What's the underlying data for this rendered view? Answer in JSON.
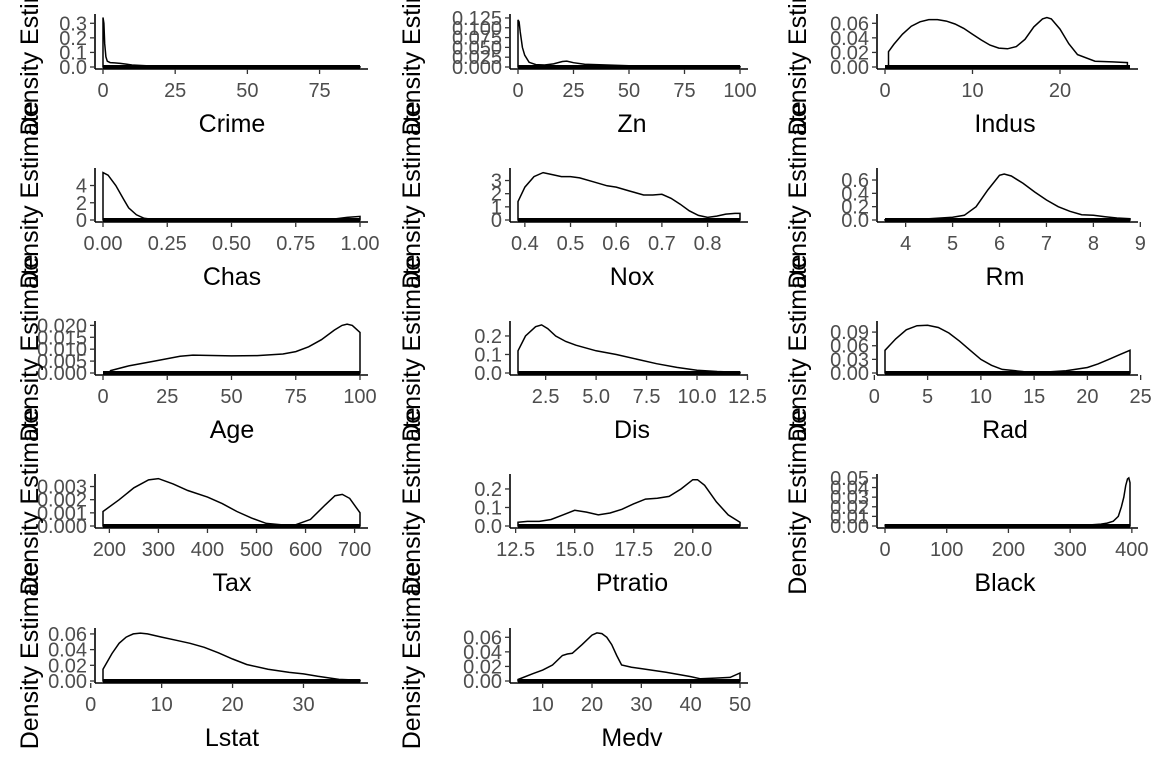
{
  "chart_data": [
    {
      "type": "line",
      "xlabel": "Crime",
      "ylabel": "Density Estimate",
      "xlim": [
        0,
        89
      ],
      "ylim": [
        0,
        0.35
      ],
      "xticks": [
        {
          "v": 0,
          "t": "0"
        },
        {
          "v": 25,
          "t": "25"
        },
        {
          "v": 50,
          "t": "50"
        },
        {
          "v": 75,
          "t": "75"
        }
      ],
      "yticks": [
        {
          "v": 0,
          "t": "0.0"
        },
        {
          "v": 0.1,
          "t": "0.1"
        },
        {
          "v": 0.2,
          "t": "0.2"
        },
        {
          "v": 0.3,
          "t": "0.3"
        }
      ],
      "x": [
        0,
        0.3,
        0.6,
        1,
        1.5,
        2.5,
        4,
        6,
        8,
        10,
        15,
        20,
        30,
        40,
        50,
        60,
        70,
        80,
        89
      ],
      "y": [
        0.34,
        0.3,
        0.16,
        0.07,
        0.04,
        0.03,
        0.028,
        0.025,
        0.02,
        0.014,
        0.008,
        0.006,
        0.004,
        0.003,
        0.002,
        0.002,
        0.002,
        0.001,
        0.001
      ]
    },
    {
      "type": "line",
      "xlabel": "Zn",
      "ylabel": "Density Estimate",
      "xlim": [
        0,
        100
      ],
      "ylim": [
        0,
        0.13
      ],
      "xticks": [
        {
          "v": 0,
          "t": "0"
        },
        {
          "v": 25,
          "t": "25"
        },
        {
          "v": 50,
          "t": "50"
        },
        {
          "v": 75,
          "t": "75"
        },
        {
          "v": 100,
          "t": "100"
        }
      ],
      "yticks": [
        {
          "v": 0,
          "t": "0.000"
        },
        {
          "v": 0.025,
          "t": "0.025"
        },
        {
          "v": 0.05,
          "t": "0.050"
        },
        {
          "v": 0.075,
          "t": "0.075"
        },
        {
          "v": 0.1,
          "t": "0.100"
        },
        {
          "v": 0.125,
          "t": "0.125"
        }
      ],
      "x": [
        0,
        0.5,
        1,
        2,
        3,
        5,
        8,
        12,
        16,
        20,
        22,
        25,
        30,
        35,
        40,
        45,
        50,
        55,
        60,
        70,
        80,
        85,
        90,
        95,
        100
      ],
      "y": [
        0.12,
        0.115,
        0.09,
        0.05,
        0.03,
        0.012,
        0.006,
        0.005,
        0.008,
        0.014,
        0.015,
        0.011,
        0.007,
        0.006,
        0.005,
        0.004,
        0.003,
        0.003,
        0.002,
        0.002,
        0.003,
        0.003,
        0.002,
        0.002,
        0.001
      ]
    },
    {
      "type": "line",
      "xlabel": "Indus",
      "ylabel": "Density Estimate",
      "xlim": [
        0,
        28
      ],
      "ylim": [
        0,
        0.07
      ],
      "xticks": [
        {
          "v": 0,
          "t": "0"
        },
        {
          "v": 10,
          "t": "10"
        },
        {
          "v": 20,
          "t": "20"
        }
      ],
      "yticks": [
        {
          "v": 0,
          "t": "0.00"
        },
        {
          "v": 0.02,
          "t": "0.02"
        },
        {
          "v": 0.04,
          "t": "0.04"
        },
        {
          "v": 0.06,
          "t": "0.06"
        }
      ],
      "x": [
        0.4,
        1,
        2,
        3,
        4,
        5,
        6,
        7,
        8,
        9,
        10,
        11,
        12,
        13,
        14,
        15,
        16,
        17,
        18,
        18.5,
        19,
        20,
        21,
        22,
        24,
        26,
        27.7
      ],
      "y": [
        0.021,
        0.031,
        0.045,
        0.056,
        0.062,
        0.065,
        0.065,
        0.063,
        0.059,
        0.053,
        0.045,
        0.037,
        0.03,
        0.026,
        0.025,
        0.028,
        0.038,
        0.055,
        0.066,
        0.068,
        0.066,
        0.052,
        0.032,
        0.017,
        0.008,
        0.007,
        0.006
      ]
    },
    {
      "type": "line",
      "xlabel": "Chas",
      "ylabel": "Density Estimate",
      "xlim": [
        0,
        1
      ],
      "ylim": [
        0,
        5.8
      ],
      "xticks": [
        {
          "v": 0,
          "t": "0.00"
        },
        {
          "v": 0.25,
          "t": "0.25"
        },
        {
          "v": 0.5,
          "t": "0.50"
        },
        {
          "v": 0.75,
          "t": "0.75"
        },
        {
          "v": 1,
          "t": "1.00"
        }
      ],
      "yticks": [
        {
          "v": 0,
          "t": "0"
        },
        {
          "v": 2,
          "t": "2"
        },
        {
          "v": 4,
          "t": "4"
        }
      ],
      "x": [
        0,
        0.02,
        0.05,
        0.08,
        0.1,
        0.13,
        0.16,
        0.2,
        0.25,
        0.3,
        0.5,
        0.7,
        0.85,
        0.9,
        0.95,
        1
      ],
      "y": [
        5.5,
        5.2,
        4.0,
        2.4,
        1.4,
        0.6,
        0.2,
        0.05,
        0.01,
        0,
        0,
        0,
        0.02,
        0.12,
        0.3,
        0.42
      ]
    },
    {
      "type": "line",
      "xlabel": "Nox",
      "ylabel": "Density Estimate",
      "xlim": [
        0.385,
        0.871
      ],
      "ylim": [
        0,
        3.8
      ],
      "xticks": [
        {
          "v": 0.4,
          "t": "0.4"
        },
        {
          "v": 0.5,
          "t": "0.5"
        },
        {
          "v": 0.6,
          "t": "0.6"
        },
        {
          "v": 0.7,
          "t": "0.7"
        },
        {
          "v": 0.8,
          "t": "0.8"
        }
      ],
      "yticks": [
        {
          "v": 0,
          "t": "0"
        },
        {
          "v": 1,
          "t": "1"
        },
        {
          "v": 2,
          "t": "2"
        },
        {
          "v": 3,
          "t": "3"
        }
      ],
      "x": [
        0.385,
        0.4,
        0.42,
        0.44,
        0.46,
        0.48,
        0.5,
        0.52,
        0.55,
        0.58,
        0.6,
        0.63,
        0.66,
        0.68,
        0.7,
        0.72,
        0.74,
        0.76,
        0.78,
        0.8,
        0.82,
        0.84,
        0.86,
        0.871
      ],
      "y": [
        1.4,
        2.5,
        3.3,
        3.6,
        3.45,
        3.3,
        3.3,
        3.2,
        2.9,
        2.6,
        2.5,
        2.2,
        1.9,
        1.9,
        1.95,
        1.65,
        1.2,
        0.7,
        0.35,
        0.2,
        0.3,
        0.45,
        0.5,
        0.5
      ]
    },
    {
      "type": "line",
      "xlabel": "Rm",
      "ylabel": "Density Estimate",
      "xlim": [
        3.56,
        8.78
      ],
      "ylim": [
        0,
        0.75
      ],
      "xticks": [
        {
          "v": 4,
          "t": "4"
        },
        {
          "v": 5,
          "t": "5"
        },
        {
          "v": 6,
          "t": "6"
        },
        {
          "v": 7,
          "t": "7"
        },
        {
          "v": 8,
          "t": "8"
        },
        {
          "v": 9,
          "t": "9"
        }
      ],
      "yticks": [
        {
          "v": 0,
          "t": "0.0"
        },
        {
          "v": 0.2,
          "t": "0.2"
        },
        {
          "v": 0.4,
          "t": "0.4"
        },
        {
          "v": 0.6,
          "t": "0.6"
        }
      ],
      "x": [
        3.56,
        4,
        4.5,
        5,
        5.25,
        5.5,
        5.75,
        6,
        6.1,
        6.25,
        6.5,
        6.75,
        7,
        7.25,
        7.5,
        7.75,
        8,
        8.25,
        8.5,
        8.78
      ],
      "y": [
        0.005,
        0.01,
        0.02,
        0.04,
        0.07,
        0.2,
        0.45,
        0.67,
        0.69,
        0.66,
        0.55,
        0.42,
        0.3,
        0.2,
        0.13,
        0.08,
        0.07,
        0.05,
        0.03,
        0.02
      ]
    },
    {
      "type": "line",
      "xlabel": "Age",
      "ylabel": "Density Estimate",
      "xlim": [
        0,
        100
      ],
      "ylim": [
        0,
        0.021
      ],
      "xticks": [
        {
          "v": 0,
          "t": "0"
        },
        {
          "v": 25,
          "t": "25"
        },
        {
          "v": 50,
          "t": "50"
        },
        {
          "v": 75,
          "t": "75"
        },
        {
          "v": 100,
          "t": "100"
        }
      ],
      "yticks": [
        {
          "v": 0,
          "t": "0.000"
        },
        {
          "v": 0.005,
          "t": "0.005"
        },
        {
          "v": 0.01,
          "t": "0.010"
        },
        {
          "v": 0.015,
          "t": "0.015"
        },
        {
          "v": 0.02,
          "t": "0.020"
        }
      ],
      "x": [
        2.9,
        10,
        20,
        30,
        35,
        40,
        50,
        60,
        70,
        75,
        80,
        85,
        90,
        93,
        95,
        97,
        98,
        100
      ],
      "y": [
        0.001,
        0.003,
        0.005,
        0.007,
        0.0075,
        0.0074,
        0.0072,
        0.0073,
        0.008,
        0.009,
        0.011,
        0.014,
        0.018,
        0.02,
        0.0205,
        0.02,
        0.019,
        0.017
      ]
    },
    {
      "type": "line",
      "xlabel": "Dis",
      "ylabel": "Density Estimate",
      "xlim": [
        1.13,
        12.13
      ],
      "ylim": [
        0,
        0.27
      ],
      "xticks": [
        {
          "v": 2.5,
          "t": "2.5"
        },
        {
          "v": 5,
          "t": "5.0"
        },
        {
          "v": 7.5,
          "t": "7.5"
        },
        {
          "v": 10,
          "t": "10.0"
        },
        {
          "v": 12.5,
          "t": "12.5"
        }
      ],
      "yticks": [
        {
          "v": 0,
          "t": "0.0"
        },
        {
          "v": 0.1,
          "t": "0.1"
        },
        {
          "v": 0.2,
          "t": "0.2"
        }
      ],
      "x": [
        1.13,
        1.5,
        2,
        2.3,
        2.6,
        3,
        3.5,
        4,
        5,
        6,
        7,
        8,
        9,
        10,
        11,
        12.13
      ],
      "y": [
        0.12,
        0.2,
        0.25,
        0.26,
        0.24,
        0.2,
        0.17,
        0.15,
        0.12,
        0.1,
        0.075,
        0.05,
        0.03,
        0.015,
        0.008,
        0.003
      ]
    },
    {
      "type": "line",
      "xlabel": "Rad",
      "ylabel": "Density Estimate",
      "xlim": [
        1,
        24
      ],
      "ylim": [
        0,
        0.11
      ],
      "xticks": [
        {
          "v": 0,
          "t": "0"
        },
        {
          "v": 5,
          "t": "5"
        },
        {
          "v": 10,
          "t": "10"
        },
        {
          "v": 15,
          "t": "15"
        },
        {
          "v": 20,
          "t": "20"
        },
        {
          "v": 25,
          "t": "25"
        }
      ],
      "yticks": [
        {
          "v": 0,
          "t": "0.00"
        },
        {
          "v": 0.03,
          "t": "0.03"
        },
        {
          "v": 0.06,
          "t": "0.06"
        },
        {
          "v": 0.09,
          "t": "0.09"
        }
      ],
      "x": [
        1,
        2,
        3,
        4,
        5,
        6,
        7,
        8,
        9,
        10,
        11,
        12,
        14,
        16,
        18,
        20,
        21,
        22,
        23,
        24
      ],
      "y": [
        0.05,
        0.075,
        0.095,
        0.104,
        0.105,
        0.1,
        0.088,
        0.07,
        0.05,
        0.03,
        0.017,
        0.008,
        0.003,
        0.002,
        0.005,
        0.012,
        0.02,
        0.03,
        0.04,
        0.05
      ]
    },
    {
      "type": "line",
      "xlabel": "Tax",
      "ylabel": "Density Estimate",
      "xlim": [
        187,
        711
      ],
      "ylim": [
        0,
        0.0038
      ],
      "xticks": [
        {
          "v": 200,
          "t": "200"
        },
        {
          "v": 300,
          "t": "300"
        },
        {
          "v": 400,
          "t": "400"
        },
        {
          "v": 500,
          "t": "500"
        },
        {
          "v": 600,
          "t": "600"
        },
        {
          "v": 700,
          "t": "700"
        }
      ],
      "yticks": [
        {
          "v": 0,
          "t": "0.000"
        },
        {
          "v": 0.001,
          "t": "0.001"
        },
        {
          "v": 0.002,
          "t": "0.002"
        },
        {
          "v": 0.003,
          "t": "0.003"
        }
      ],
      "x": [
        187,
        220,
        250,
        280,
        300,
        330,
        360,
        400,
        430,
        460,
        490,
        520,
        550,
        580,
        610,
        640,
        660,
        675,
        690,
        711
      ],
      "y": [
        0.0011,
        0.002,
        0.0029,
        0.0035,
        0.0036,
        0.0032,
        0.0027,
        0.0022,
        0.0017,
        0.0011,
        0.0006,
        0.0002,
        0.0001,
        0.0001,
        0.0005,
        0.0016,
        0.0023,
        0.0024,
        0.0021,
        0.001
      ]
    },
    {
      "type": "line",
      "xlabel": "Ptratio",
      "ylabel": "Density Estimate",
      "xlim": [
        12.6,
        22
      ],
      "ylim": [
        0,
        0.27
      ],
      "xticks": [
        {
          "v": 12.5,
          "t": "12.5"
        },
        {
          "v": 15,
          "t": "15.0"
        },
        {
          "v": 17.5,
          "t": "17.5"
        },
        {
          "v": 20,
          "t": "20.0"
        }
      ],
      "yticks": [
        {
          "v": 0,
          "t": "0.0"
        },
        {
          "v": 0.1,
          "t": "0.1"
        },
        {
          "v": 0.2,
          "t": "0.2"
        }
      ],
      "x": [
        12.6,
        13,
        13.5,
        14,
        14.5,
        15,
        15.5,
        16,
        16.5,
        17,
        17.5,
        18,
        18.5,
        19,
        19.5,
        20,
        20.2,
        20.5,
        21,
        21.5,
        22
      ],
      "y": [
        0.02,
        0.025,
        0.025,
        0.035,
        0.06,
        0.085,
        0.075,
        0.06,
        0.07,
        0.09,
        0.12,
        0.145,
        0.15,
        0.16,
        0.2,
        0.25,
        0.25,
        0.22,
        0.13,
        0.06,
        0.02
      ]
    },
    {
      "type": "line",
      "xlabel": "Black",
      "ylabel": "Density Estimate",
      "xlim": [
        0,
        397
      ],
      "ylim": [
        0,
        0.052
      ],
      "xticks": [
        {
          "v": 0,
          "t": "0"
        },
        {
          "v": 100,
          "t": "100"
        },
        {
          "v": 200,
          "t": "200"
        },
        {
          "v": 300,
          "t": "300"
        },
        {
          "v": 400,
          "t": "400"
        }
      ],
      "yticks": [
        {
          "v": 0,
          "t": "0.00"
        },
        {
          "v": 0.01,
          "t": "0.01"
        },
        {
          "v": 0.02,
          "t": "0.02"
        },
        {
          "v": 0.03,
          "t": "0.03"
        },
        {
          "v": 0.04,
          "t": "0.04"
        },
        {
          "v": 0.05,
          "t": "0.05"
        }
      ],
      "x": [
        0.3,
        20,
        50,
        100,
        150,
        200,
        250,
        300,
        330,
        350,
        360,
        370,
        378,
        383,
        387,
        390,
        393,
        395,
        397
      ],
      "y": [
        0.001,
        0.001,
        0.0005,
        0.0004,
        0.0003,
        0.0003,
        0.0004,
        0.0006,
        0.001,
        0.002,
        0.003,
        0.005,
        0.01,
        0.02,
        0.03,
        0.042,
        0.049,
        0.05,
        0.045
      ]
    },
    {
      "type": "line",
      "xlabel": "Lstat",
      "ylabel": "Density Estimate",
      "xlim": [
        1.73,
        37.97
      ],
      "ylim": [
        0,
        0.065
      ],
      "xticks": [
        {
          "v": 0,
          "t": "0"
        },
        {
          "v": 10,
          "t": "10"
        },
        {
          "v": 20,
          "t": "20"
        },
        {
          "v": 30,
          "t": "30"
        }
      ],
      "yticks": [
        {
          "v": 0,
          "t": "0.00"
        },
        {
          "v": 0.02,
          "t": "0.02"
        },
        {
          "v": 0.04,
          "t": "0.04"
        },
        {
          "v": 0.06,
          "t": "0.06"
        }
      ],
      "x": [
        1.73,
        3,
        4,
        5,
        6,
        7,
        8,
        10,
        12,
        14,
        16,
        18,
        20,
        22,
        25,
        28,
        30,
        32,
        35,
        37.97
      ],
      "y": [
        0.015,
        0.035,
        0.048,
        0.056,
        0.06,
        0.061,
        0.06,
        0.056,
        0.052,
        0.048,
        0.043,
        0.036,
        0.028,
        0.021,
        0.015,
        0.011,
        0.009,
        0.006,
        0.002,
        0.001
      ]
    },
    {
      "type": "line",
      "xlabel": "Medv",
      "ylabel": "Density Estimate",
      "xlim": [
        5,
        50
      ],
      "ylim": [
        0,
        0.07
      ],
      "xticks": [
        {
          "v": 10,
          "t": "10"
        },
        {
          "v": 20,
          "t": "20"
        },
        {
          "v": 30,
          "t": "30"
        },
        {
          "v": 40,
          "t": "40"
        },
        {
          "v": 50,
          "t": "50"
        }
      ],
      "yticks": [
        {
          "v": 0,
          "t": "0.00"
        },
        {
          "v": 0.02,
          "t": "0.02"
        },
        {
          "v": 0.04,
          "t": "0.04"
        },
        {
          "v": 0.06,
          "t": "0.06"
        }
      ],
      "x": [
        5,
        8,
        10,
        12,
        14,
        15,
        16,
        18,
        20,
        21,
        22,
        23,
        24,
        25,
        26,
        28,
        30,
        35,
        40,
        42,
        45,
        48,
        50
      ],
      "y": [
        0.002,
        0.01,
        0.015,
        0.022,
        0.035,
        0.037,
        0.038,
        0.05,
        0.063,
        0.066,
        0.065,
        0.06,
        0.05,
        0.035,
        0.022,
        0.019,
        0.017,
        0.012,
        0.006,
        0.003,
        0.004,
        0.005,
        0.011
      ]
    }
  ]
}
